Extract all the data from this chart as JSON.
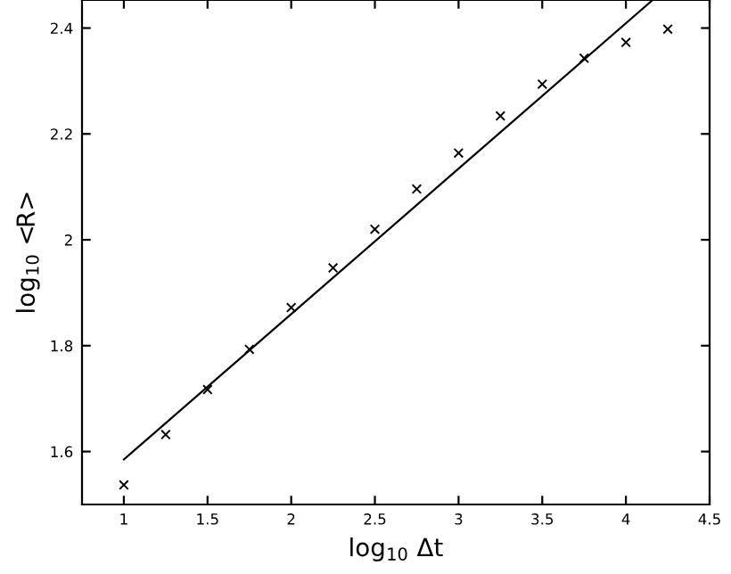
{
  "chart_data": {
    "type": "scatter",
    "xlabel": "log$_{10}$ Δt",
    "ylabel": "log$_{10}$ <R>",
    "xlim": [
      0.75,
      4.5
    ],
    "ylim": [
      1.5,
      2.453
    ],
    "xticks": [
      1,
      1.5,
      2,
      2.5,
      3,
      3.5,
      4,
      4.5
    ],
    "yticks": [
      1.6,
      1.8,
      2,
      2.2,
      2.4
    ],
    "grid": false,
    "series": [
      {
        "marker": "cross",
        "color": "#000000",
        "x": [
          1,
          1.25,
          1.5,
          1.75,
          2,
          2.25,
          2.5,
          2.75,
          3,
          3.25,
          3.5,
          3.75,
          4,
          4.25
        ],
        "values": [
          1.537,
          1.632,
          1.717,
          1.793,
          1.872,
          1.947,
          2.02,
          2.096,
          2.164,
          2.234,
          2.294,
          2.343,
          2.373,
          2.398
        ]
      },
      {
        "type": "line",
        "line_style": "solid",
        "color": "#000000",
        "x": [
          1,
          4.16
        ],
        "values": [
          1.585,
          2.453
        ]
      }
    ]
  }
}
